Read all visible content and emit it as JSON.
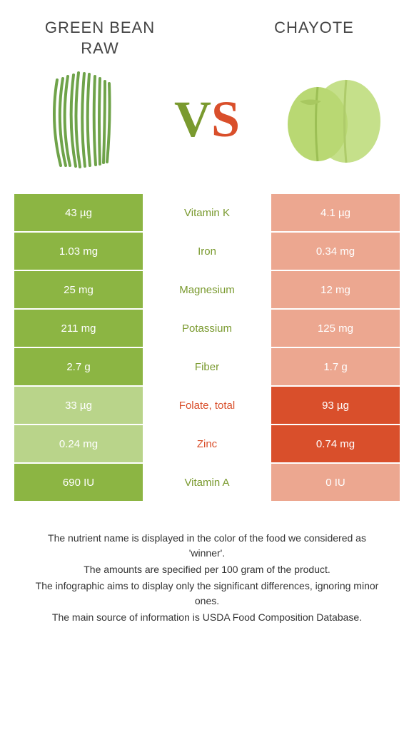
{
  "header": {
    "left_title": "Green bean raw",
    "right_title": "Chayote",
    "vs_v": "V",
    "vs_s": "S"
  },
  "colors": {
    "left_strong": "#8cb543",
    "right_strong": "#d94f2b",
    "left_weak": "#b9d48a",
    "right_weak": "#eca790",
    "nutrient_left_win": "#7a9a2f",
    "nutrient_right_win": "#d94f2b"
  },
  "rows": [
    {
      "nutrient": "Vitamin K",
      "left": "43 µg",
      "right": "4.1 µg",
      "winner": "left"
    },
    {
      "nutrient": "Iron",
      "left": "1.03 mg",
      "right": "0.34 mg",
      "winner": "left"
    },
    {
      "nutrient": "Magnesium",
      "left": "25 mg",
      "right": "12 mg",
      "winner": "left"
    },
    {
      "nutrient": "Potassium",
      "left": "211 mg",
      "right": "125 mg",
      "winner": "left"
    },
    {
      "nutrient": "Fiber",
      "left": "2.7 g",
      "right": "1.7 g",
      "winner": "left"
    },
    {
      "nutrient": "Folate, total",
      "left": "33 µg",
      "right": "93 µg",
      "winner": "right"
    },
    {
      "nutrient": "Zinc",
      "left": "0.24 mg",
      "right": "0.74 mg",
      "winner": "right"
    },
    {
      "nutrient": "Vitamin A",
      "left": "690 IU",
      "right": "0 IU",
      "winner": "left"
    }
  ],
  "footnotes": {
    "l1": "The nutrient name is displayed in the color of the food we considered as 'winner'.",
    "l2": "The amounts are specified per 100 gram of the product.",
    "l3": "The infographic aims to display only the significant differences, ignoring minor ones.",
    "l4": "The main source of information is USDA Food Composition Database."
  }
}
